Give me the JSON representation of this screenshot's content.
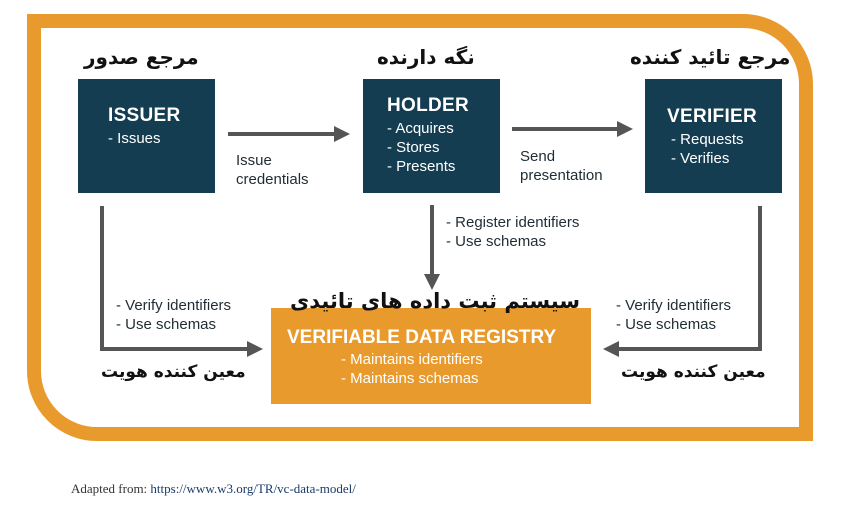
{
  "persian_labels": {
    "issuer": "مرجع صدور",
    "holder": "نگه دارنده",
    "verifier": "مرجع تائید کننده",
    "registry": "سیستم ثبت داده های تائیدی",
    "left_identity": "معین کننده هویت",
    "right_identity": "معین کننده هویت"
  },
  "issuer": {
    "title": "ISSUER",
    "items": [
      "- Issues"
    ]
  },
  "holder": {
    "title": "HOLDER",
    "items": [
      "- Acquires",
      "- Stores",
      "- Presents"
    ]
  },
  "verifier": {
    "title": "VERIFIER",
    "items": [
      "- Requests",
      "- Verifies"
    ]
  },
  "registry": {
    "title": "VERIFIABLE DATA REGISTRY",
    "items": [
      "- Maintains identifiers",
      "- Maintains schemas"
    ]
  },
  "flows": {
    "issue": [
      "Issue",
      "credentials"
    ],
    "send": [
      "Send",
      "presentation"
    ],
    "holder_registry": [
      "- Register identifiers",
      "- Use schemas"
    ],
    "issuer_registry": [
      "- Verify identifiers",
      "- Use schemas"
    ],
    "verifier_registry": [
      "- Verify identifiers",
      "- Use schemas"
    ]
  },
  "footer": {
    "prefix": "Adapted from: ",
    "link": "https://www.w3.org/TR/vc-data-model/"
  },
  "colors": {
    "frame": "#E99A2C",
    "box": "#143D52",
    "arrow": "#555555",
    "text": "#1f2d33"
  }
}
